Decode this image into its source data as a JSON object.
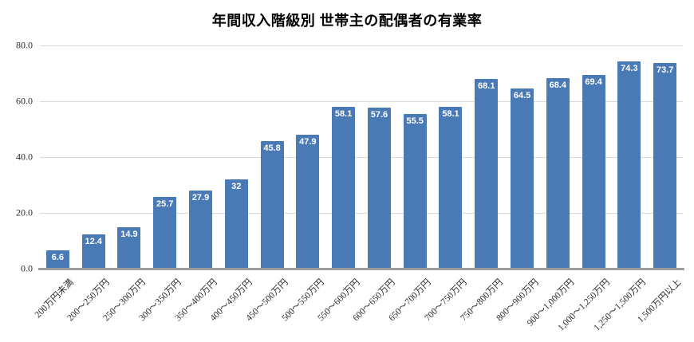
{
  "title": "年間収入階級別 世帯主の配偶者の有業率",
  "colors": {
    "bar": "#4a7ab5",
    "gridline": "#d9d9d9",
    "axis_line": "#9e9e9e",
    "value_label": "#ffffff",
    "tick_label": "#2b2b2b",
    "title": "#000000",
    "background": "#ffffff"
  },
  "chart_data": {
    "type": "bar",
    "title": "年間収入階級別 世帯主の配偶者の有業率",
    "categories": [
      "200万円未満",
      "200〜250万円",
      "250〜300万円",
      "300〜350万円",
      "350〜400万円",
      "400〜450万円",
      "450〜500万円",
      "500〜550万円",
      "550〜600万円",
      "600〜650万円",
      "650〜700万円",
      "700〜750万円",
      "750〜800万円",
      "800〜900万円",
      "900〜1,000万円",
      "1,000〜1,250万円",
      "1,250〜1,500万円",
      "1,500万円以上"
    ],
    "values": [
      6.6,
      12.4,
      14.9,
      25.7,
      27.9,
      32,
      45.8,
      47.9,
      58.1,
      57.6,
      55.5,
      58.1,
      68.1,
      64.5,
      68.4,
      69.4,
      74.3,
      73.7
    ],
    "value_labels": [
      "6.6",
      "12.4",
      "14.9",
      "25.7",
      "27.9",
      "32",
      "45.8",
      "47.9",
      "58.1",
      "57.6",
      "55.5",
      "58.1",
      "68.1",
      "64.5",
      "68.4",
      "69.4",
      "74.3",
      "73.7"
    ],
    "xlabel": "",
    "ylabel": "",
    "ylim": [
      0,
      80
    ],
    "ytick_labels": [
      "80.0",
      "60.0",
      "40.0",
      "20.0",
      "0.0"
    ],
    "ytick_values": [
      80,
      60,
      40,
      20,
      0
    ],
    "grid": true,
    "legend": false,
    "value_labels_position": "inside-top",
    "xtick_rotation_deg": 45
  }
}
